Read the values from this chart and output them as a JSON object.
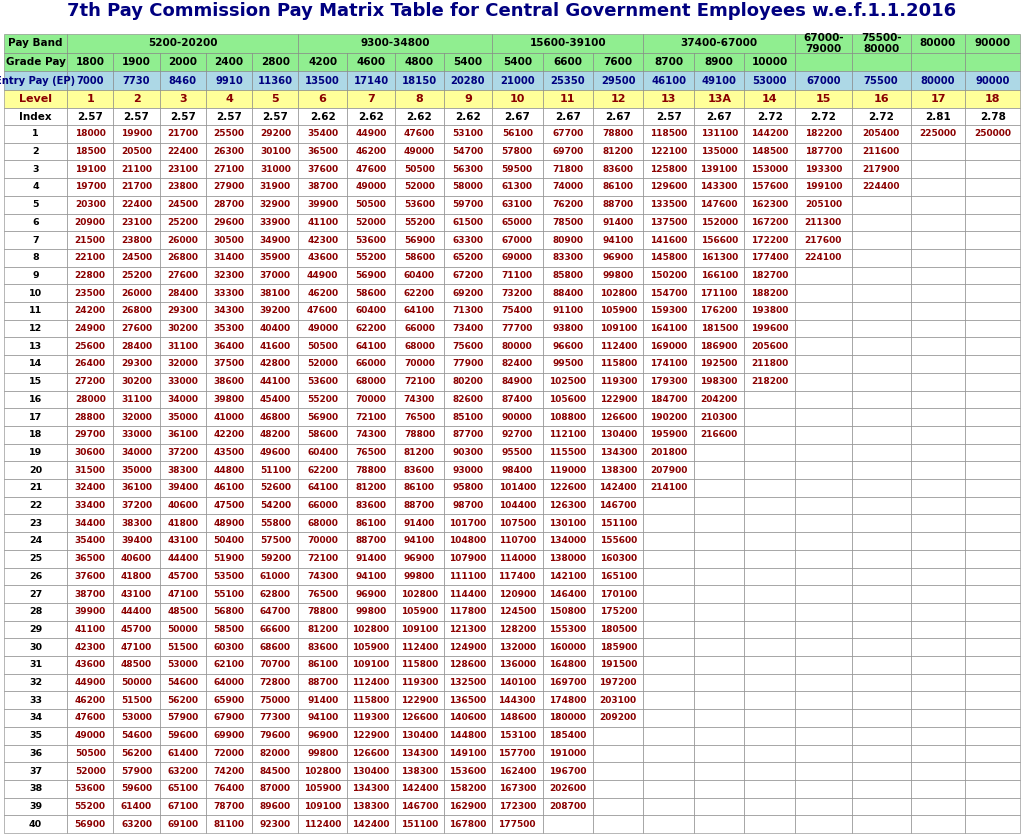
{
  "title": "7th Pay Commission Pay Matrix Table for Central Government Employees w.e.f.1.1.2016",
  "grade_pay_row": [
    "Grade Pay",
    "1800",
    "1900",
    "2000",
    "2400",
    "2800",
    "4200",
    "4600",
    "4800",
    "5400",
    "5400",
    "6600",
    "7600",
    "8700",
    "8900",
    "10000",
    "",
    "",
    "",
    ""
  ],
  "entry_pay_row": [
    "Entry Pay (EP)",
    "7000",
    "7730",
    "8460",
    "9910",
    "11360",
    "13500",
    "17140",
    "18150",
    "20280",
    "21000",
    "25350",
    "29500",
    "46100",
    "49100",
    "53000",
    "67000",
    "75500",
    "80000",
    "90000"
  ],
  "level_row": [
    "Level",
    "1",
    "2",
    "3",
    "4",
    "5",
    "6",
    "7",
    "8",
    "9",
    "10",
    "11",
    "12",
    "13",
    "13A",
    "14",
    "15",
    "16",
    "17",
    "18"
  ],
  "index_row": [
    "Index",
    "2.57",
    "2.57",
    "2.57",
    "2.57",
    "2.57",
    "2.62",
    "2.62",
    "2.62",
    "2.62",
    "2.67",
    "2.67",
    "2.67",
    "2.57",
    "2.67",
    "2.72",
    "2.72",
    "2.72",
    "2.81",
    "2.78"
  ],
  "span_configs": [
    [
      1,
      5,
      "5200-20200"
    ],
    [
      6,
      4,
      "9300-34800"
    ],
    [
      10,
      3,
      "15600-39100"
    ],
    [
      13,
      3,
      "37400-67000"
    ],
    [
      16,
      1,
      "67000-\n79000"
    ],
    [
      17,
      1,
      "75500-\n80000"
    ],
    [
      18,
      1,
      "80000"
    ],
    [
      19,
      1,
      "90000"
    ]
  ],
  "data": [
    [
      1,
      18000,
      19900,
      21700,
      25500,
      29200,
      35400,
      44900,
      47600,
      53100,
      56100,
      67700,
      78800,
      118500,
      131100,
      144200,
      182200,
      205400,
      225000,
      250000
    ],
    [
      2,
      18500,
      20500,
      22400,
      26300,
      30100,
      36500,
      46200,
      49000,
      54700,
      57800,
      69700,
      81200,
      122100,
      135000,
      148500,
      187700,
      211600,
      "",
      ""
    ],
    [
      3,
      19100,
      21100,
      23100,
      27100,
      31000,
      37600,
      47600,
      50500,
      56300,
      59500,
      71800,
      83600,
      125800,
      139100,
      153000,
      193300,
      217900,
      "",
      ""
    ],
    [
      4,
      19700,
      21700,
      23800,
      27900,
      31900,
      38700,
      49000,
      52000,
      58000,
      61300,
      74000,
      86100,
      129600,
      143300,
      157600,
      199100,
      224400,
      "",
      ""
    ],
    [
      5,
      20300,
      22400,
      24500,
      28700,
      32900,
      39900,
      50500,
      53600,
      59700,
      63100,
      76200,
      88700,
      133500,
      147600,
      162300,
      205100,
      "",
      "",
      ""
    ],
    [
      6,
      20900,
      23100,
      25200,
      29600,
      33900,
      41100,
      52000,
      55200,
      61500,
      65000,
      78500,
      91400,
      137500,
      152000,
      167200,
      211300,
      "",
      "",
      ""
    ],
    [
      7,
      21500,
      23800,
      26000,
      30500,
      34900,
      42300,
      53600,
      56900,
      63300,
      67000,
      80900,
      94100,
      141600,
      156600,
      172200,
      217600,
      "",
      "",
      ""
    ],
    [
      8,
      22100,
      24500,
      26800,
      31400,
      35900,
      43600,
      55200,
      58600,
      65200,
      69000,
      83300,
      96900,
      145800,
      161300,
      177400,
      224100,
      "",
      "",
      ""
    ],
    [
      9,
      22800,
      25200,
      27600,
      32300,
      37000,
      44900,
      56900,
      60400,
      67200,
      71100,
      85800,
      99800,
      150200,
      166100,
      182700,
      "",
      "",
      "",
      ""
    ],
    [
      10,
      23500,
      26000,
      28400,
      33300,
      38100,
      46200,
      58600,
      62200,
      69200,
      73200,
      88400,
      102800,
      154700,
      171100,
      188200,
      "",
      "",
      "",
      ""
    ],
    [
      11,
      24200,
      26800,
      29300,
      34300,
      39200,
      47600,
      60400,
      64100,
      71300,
      75400,
      91100,
      105900,
      159300,
      176200,
      193800,
      "",
      "",
      "",
      ""
    ],
    [
      12,
      24900,
      27600,
      30200,
      35300,
      40400,
      49000,
      62200,
      66000,
      73400,
      77700,
      93800,
      109100,
      164100,
      181500,
      199600,
      "",
      "",
      "",
      ""
    ],
    [
      13,
      25600,
      28400,
      31100,
      36400,
      41600,
      50500,
      64100,
      68000,
      75600,
      80000,
      96600,
      112400,
      169000,
      186900,
      205600,
      "",
      "",
      "",
      ""
    ],
    [
      14,
      26400,
      29300,
      32000,
      37500,
      42800,
      52000,
      66000,
      70000,
      77900,
      82400,
      99500,
      115800,
      174100,
      192500,
      211800,
      "",
      "",
      "",
      ""
    ],
    [
      15,
      27200,
      30200,
      33000,
      38600,
      44100,
      53600,
      68000,
      72100,
      80200,
      84900,
      102500,
      119300,
      179300,
      198300,
      218200,
      "",
      "",
      "",
      ""
    ],
    [
      16,
      28000,
      31100,
      34000,
      39800,
      45400,
      55200,
      70000,
      74300,
      82600,
      87400,
      105600,
      122900,
      184700,
      204200,
      "",
      "",
      "",
      "",
      ""
    ],
    [
      17,
      28800,
      32000,
      35000,
      41000,
      46800,
      56900,
      72100,
      76500,
      85100,
      90000,
      108800,
      126600,
      190200,
      210300,
      "",
      "",
      "",
      "",
      ""
    ],
    [
      18,
      29700,
      33000,
      36100,
      42200,
      48200,
      58600,
      74300,
      78800,
      87700,
      92700,
      112100,
      130400,
      195900,
      216600,
      "",
      "",
      "",
      "",
      ""
    ],
    [
      19,
      30600,
      34000,
      37200,
      43500,
      49600,
      60400,
      76500,
      81200,
      90300,
      95500,
      115500,
      134300,
      201800,
      "",
      "",
      "",
      "",
      "",
      ""
    ],
    [
      20,
      31500,
      35000,
      38300,
      44800,
      51100,
      62200,
      78800,
      83600,
      93000,
      98400,
      119000,
      138300,
      207900,
      "",
      "",
      "",
      "",
      "",
      ""
    ],
    [
      21,
      32400,
      36100,
      39400,
      46100,
      52600,
      64100,
      81200,
      86100,
      95800,
      101400,
      122600,
      142400,
      214100,
      "",
      "",
      "",
      "",
      "",
      ""
    ],
    [
      22,
      33400,
      37200,
      40600,
      47500,
      54200,
      66000,
      83600,
      88700,
      98700,
      104400,
      126300,
      146700,
      "",
      "",
      "",
      "",
      "",
      "",
      ""
    ],
    [
      23,
      34400,
      38300,
      41800,
      48900,
      55800,
      68000,
      86100,
      91400,
      101700,
      107500,
      130100,
      151100,
      "",
      "",
      "",
      "",
      "",
      "",
      ""
    ],
    [
      24,
      35400,
      39400,
      43100,
      50400,
      57500,
      70000,
      88700,
      94100,
      104800,
      110700,
      134000,
      155600,
      "",
      "",
      "",
      "",
      "",
      "",
      ""
    ],
    [
      25,
      36500,
      40600,
      44400,
      51900,
      59200,
      72100,
      91400,
      96900,
      107900,
      114000,
      138000,
      160300,
      "",
      "",
      "",
      "",
      "",
      "",
      ""
    ],
    [
      26,
      37600,
      41800,
      45700,
      53500,
      61000,
      74300,
      94100,
      99800,
      111100,
      117400,
      142100,
      165100,
      "",
      "",
      "",
      "",
      "",
      "",
      ""
    ],
    [
      27,
      38700,
      43100,
      47100,
      55100,
      62800,
      76500,
      96900,
      102800,
      114400,
      120900,
      146400,
      170100,
      "",
      "",
      "",
      "",
      "",
      "",
      ""
    ],
    [
      28,
      39900,
      44400,
      48500,
      56800,
      64700,
      78800,
      99800,
      105900,
      117800,
      124500,
      150800,
      175200,
      "",
      "",
      "",
      "",
      "",
      "",
      ""
    ],
    [
      29,
      41100,
      45700,
      50000,
      58500,
      66600,
      81200,
      102800,
      109100,
      121300,
      128200,
      155300,
      180500,
      "",
      "",
      "",
      "",
      "",
      "",
      ""
    ],
    [
      30,
      42300,
      47100,
      51500,
      60300,
      68600,
      83600,
      105900,
      112400,
      124900,
      132000,
      160000,
      185900,
      "",
      "",
      "",
      "",
      "",
      "",
      ""
    ],
    [
      31,
      43600,
      48500,
      53000,
      62100,
      70700,
      86100,
      109100,
      115800,
      128600,
      136000,
      164800,
      191500,
      "",
      "",
      "",
      "",
      "",
      "",
      ""
    ],
    [
      32,
      44900,
      50000,
      54600,
      64000,
      72800,
      88700,
      112400,
      119300,
      132500,
      140100,
      169700,
      197200,
      "",
      "",
      "",
      "",
      "",
      "",
      ""
    ],
    [
      33,
      46200,
      51500,
      56200,
      65900,
      75000,
      91400,
      115800,
      122900,
      136500,
      144300,
      174800,
      203100,
      "",
      "",
      "",
      "",
      "",
      "",
      ""
    ],
    [
      34,
      47600,
      53000,
      57900,
      67900,
      77300,
      94100,
      119300,
      126600,
      140600,
      148600,
      180000,
      209200,
      "",
      "",
      "",
      "",
      "",
      "",
      ""
    ],
    [
      35,
      49000,
      54600,
      59600,
      69900,
      79600,
      96900,
      122900,
      130400,
      144800,
      153100,
      185400,
      "",
      "",
      "",
      "",
      "",
      "",
      "",
      ""
    ],
    [
      36,
      50500,
      56200,
      61400,
      72000,
      82000,
      99800,
      126600,
      134300,
      149100,
      157700,
      191000,
      "",
      "",
      "",
      "",
      "",
      "",
      "",
      ""
    ],
    [
      37,
      52000,
      57900,
      63200,
      74200,
      84500,
      102800,
      130400,
      138300,
      153600,
      162400,
      196700,
      "",
      "",
      "",
      "",
      "",
      "",
      "",
      ""
    ],
    [
      38,
      53600,
      59600,
      65100,
      76400,
      87000,
      105900,
      134300,
      142400,
      158200,
      167300,
      202600,
      "",
      "",
      "",
      "",
      "",
      "",
      "",
      ""
    ],
    [
      39,
      55200,
      61400,
      67100,
      78700,
      89600,
      109100,
      138300,
      146700,
      162900,
      172300,
      208700,
      "",
      "",
      "",
      "",
      "",
      "",
      "",
      ""
    ],
    [
      40,
      56900,
      63200,
      69100,
      81100,
      92300,
      112400,
      142400,
      151100,
      167800,
      177500,
      "",
      "",
      "",
      "",
      "",
      "",
      "",
      "",
      ""
    ]
  ],
  "colors": {
    "title_text": "#000080",
    "pay_band_bg": "#90EE90",
    "pay_band_text": "#000000",
    "grade_pay_bg": "#90EE90",
    "grade_pay_text": "#000000",
    "entry_pay_bg": "#ADD8E6",
    "entry_pay_text": "#000080",
    "level_bg": "#FFFF99",
    "level_text": "#8B0000",
    "index_bg": "#ffffff",
    "index_text": "#000000",
    "data_bg": "#ffffff",
    "data_text": "#8B0000",
    "index_col_text": "#000000",
    "border_color": "#808080"
  }
}
